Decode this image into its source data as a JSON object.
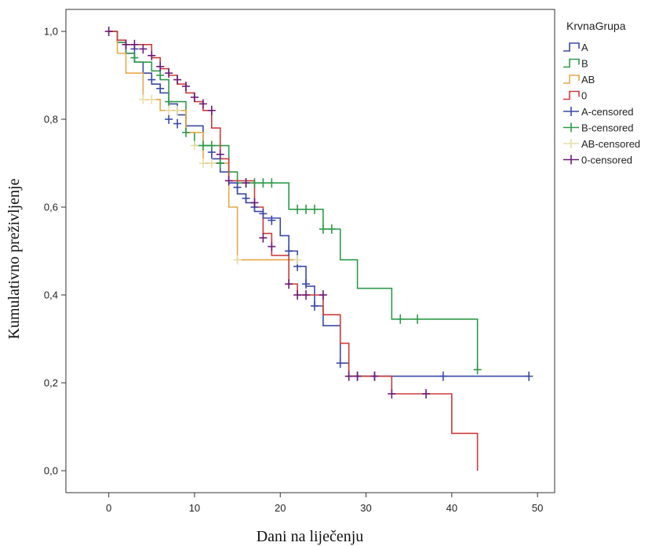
{
  "chart_data": {
    "type": "line",
    "subtype": "kaplan-meier",
    "xlabel": "Dani na liječenju",
    "ylabel": "Kumulativno preživljenje",
    "xlim": [
      -5,
      52
    ],
    "ylim": [
      -0.05,
      1.05
    ],
    "xticks": [
      0,
      10,
      20,
      30,
      40,
      50
    ],
    "xtick_labels": [
      "0",
      "10",
      "20",
      "30",
      "40",
      "50"
    ],
    "yticks": [
      0.0,
      0.2,
      0.4,
      0.6,
      0.8,
      1.0
    ],
    "ytick_labels": [
      "0,0",
      "0,2",
      "0,4",
      "0,6",
      "0,8",
      "1,0"
    ],
    "grid": false,
    "legend": {
      "title": "KrvnaGrupa",
      "placement": "right",
      "entries": [
        {
          "label": "A",
          "kind": "step",
          "color": "#3a49a8"
        },
        {
          "label": "B",
          "kind": "step",
          "color": "#2e9a4a"
        },
        {
          "label": "AB",
          "kind": "step",
          "color": "#e6a84a"
        },
        {
          "label": "0",
          "kind": "step",
          "color": "#cc3b3b"
        },
        {
          "label": "A-censored",
          "kind": "censor",
          "color": "#3a49a8"
        },
        {
          "label": "B-censored",
          "kind": "censor",
          "color": "#2e9a4a"
        },
        {
          "label": "AB-censored",
          "kind": "censor",
          "color": "#e6dfa8"
        },
        {
          "label": "0-censored",
          "kind": "censor",
          "color": "#6a1a7a"
        }
      ]
    },
    "series": [
      {
        "name": "A",
        "color": "#3a49a8",
        "censor_color": "#3a49a8",
        "steps": [
          [
            0,
            1.0
          ],
          [
            1,
            0.975
          ],
          [
            2,
            0.95
          ],
          [
            3,
            0.93
          ],
          [
            4,
            0.905
          ],
          [
            5,
            0.88
          ],
          [
            6,
            0.86
          ],
          [
            7,
            0.835
          ],
          [
            8,
            0.81
          ],
          [
            9,
            0.785
          ],
          [
            11,
            0.74
          ],
          [
            12,
            0.71
          ],
          [
            13,
            0.68
          ],
          [
            14,
            0.655
          ],
          [
            15,
            0.63
          ],
          [
            16,
            0.61
          ],
          [
            17,
            0.59
          ],
          [
            18,
            0.575
          ],
          [
            20,
            0.535
          ],
          [
            21,
            0.5
          ],
          [
            22,
            0.465
          ],
          [
            23,
            0.42
          ],
          [
            24,
            0.375
          ],
          [
            25,
            0.33
          ],
          [
            27,
            0.245
          ],
          [
            28,
            0.215
          ],
          [
            49,
            0.215
          ]
        ],
        "censored": [
          [
            3,
            0.96
          ],
          [
            5,
            0.89
          ],
          [
            6,
            0.87
          ],
          [
            7,
            0.8
          ],
          [
            8,
            0.79
          ],
          [
            12,
            0.725
          ],
          [
            13,
            0.7
          ],
          [
            15,
            0.645
          ],
          [
            16,
            0.62
          ],
          [
            17,
            0.6
          ],
          [
            18,
            0.585
          ],
          [
            19,
            0.57
          ],
          [
            21,
            0.5
          ],
          [
            22,
            0.465
          ],
          [
            23,
            0.425
          ],
          [
            24,
            0.375
          ],
          [
            27,
            0.245
          ],
          [
            29,
            0.215
          ],
          [
            31,
            0.215
          ],
          [
            39,
            0.215
          ],
          [
            49,
            0.215
          ]
        ]
      },
      {
        "name": "B",
        "color": "#2e9a4a",
        "censor_color": "#2e9a4a",
        "steps": [
          [
            0,
            1.0
          ],
          [
            1,
            0.975
          ],
          [
            2,
            0.95
          ],
          [
            3,
            0.93
          ],
          [
            5,
            0.91
          ],
          [
            6,
            0.89
          ],
          [
            7,
            0.84
          ],
          [
            9,
            0.77
          ],
          [
            10,
            0.74
          ],
          [
            14,
            0.68
          ],
          [
            15,
            0.655
          ],
          [
            21,
            0.595
          ],
          [
            25,
            0.55
          ],
          [
            27,
            0.48
          ],
          [
            29,
            0.415
          ],
          [
            33,
            0.345
          ],
          [
            43,
            0.23
          ]
        ],
        "censored": [
          [
            3,
            0.94
          ],
          [
            6,
            0.9
          ],
          [
            7,
            0.84
          ],
          [
            9,
            0.77
          ],
          [
            11,
            0.74
          ],
          [
            12,
            0.74
          ],
          [
            13,
            0.7
          ],
          [
            16,
            0.655
          ],
          [
            17,
            0.655
          ],
          [
            18,
            0.655
          ],
          [
            19,
            0.655
          ],
          [
            22,
            0.595
          ],
          [
            23,
            0.595
          ],
          [
            24,
            0.595
          ],
          [
            25,
            0.55
          ],
          [
            26,
            0.55
          ],
          [
            34,
            0.345
          ],
          [
            36,
            0.345
          ],
          [
            43,
            0.23
          ]
        ]
      },
      {
        "name": "AB",
        "color": "#e6a84a",
        "censor_color": "#e6dfa8",
        "steps": [
          [
            0,
            1.0
          ],
          [
            1,
            0.95
          ],
          [
            2,
            0.905
          ],
          [
            4,
            0.845
          ],
          [
            6,
            0.82
          ],
          [
            9,
            0.77
          ],
          [
            11,
            0.7
          ],
          [
            14,
            0.6
          ],
          [
            15,
            0.48
          ],
          [
            22,
            0.48
          ]
        ],
        "censored": [
          [
            4,
            0.845
          ],
          [
            5,
            0.845
          ],
          [
            7,
            0.82
          ],
          [
            8,
            0.82
          ],
          [
            10,
            0.74
          ],
          [
            11,
            0.7
          ],
          [
            12,
            0.7
          ],
          [
            15,
            0.48
          ],
          [
            22,
            0.48
          ]
        ]
      },
      {
        "name": "0",
        "color": "#cc3b3b",
        "censor_color": "#6a1a7a",
        "steps": [
          [
            0,
            1.0
          ],
          [
            1,
            0.98
          ],
          [
            2,
            0.97
          ],
          [
            5,
            0.94
          ],
          [
            6,
            0.915
          ],
          [
            7,
            0.9
          ],
          [
            8,
            0.88
          ],
          [
            9,
            0.86
          ],
          [
            10,
            0.84
          ],
          [
            11,
            0.82
          ],
          [
            12,
            0.78
          ],
          [
            13,
            0.71
          ],
          [
            14,
            0.66
          ],
          [
            17,
            0.6
          ],
          [
            18,
            0.54
          ],
          [
            19,
            0.49
          ],
          [
            21,
            0.425
          ],
          [
            22,
            0.4
          ],
          [
            25,
            0.355
          ],
          [
            27,
            0.29
          ],
          [
            28,
            0.215
          ],
          [
            33,
            0.175
          ],
          [
            40,
            0.085
          ],
          [
            43,
            0.0
          ]
        ],
        "censored": [
          [
            0,
            1.0
          ],
          [
            2,
            0.97
          ],
          [
            3,
            0.97
          ],
          [
            4,
            0.96
          ],
          [
            5,
            0.945
          ],
          [
            6,
            0.92
          ],
          [
            7,
            0.905
          ],
          [
            8,
            0.89
          ],
          [
            9,
            0.875
          ],
          [
            10,
            0.85
          ],
          [
            11,
            0.835
          ],
          [
            12,
            0.82
          ],
          [
            13,
            0.72
          ],
          [
            14,
            0.66
          ],
          [
            16,
            0.655
          ],
          [
            17,
            0.61
          ],
          [
            18,
            0.53
          ],
          [
            19,
            0.51
          ],
          [
            21,
            0.425
          ],
          [
            22,
            0.4
          ],
          [
            23,
            0.4
          ],
          [
            25,
            0.4
          ],
          [
            28,
            0.215
          ],
          [
            29,
            0.215
          ],
          [
            31,
            0.215
          ],
          [
            33,
            0.175
          ],
          [
            37,
            0.175
          ]
        ]
      }
    ]
  }
}
